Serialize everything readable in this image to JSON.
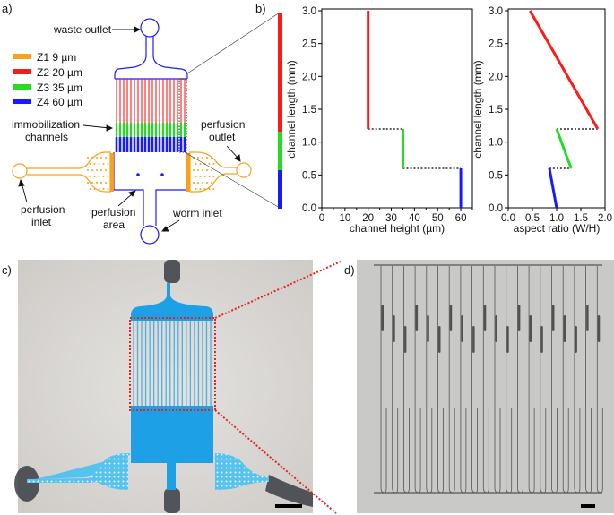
{
  "panels": {
    "a": "a)",
    "b": "b)",
    "c": "c)",
    "d": "d)"
  },
  "diagram": {
    "legend": [
      {
        "label": "Z1 9 µm",
        "color": "#f7a21b"
      },
      {
        "label": "Z2 20 µm",
        "color": "#ff1a1a"
      },
      {
        "label": "Z3 35 µm",
        "color": "#22dd22"
      },
      {
        "label": "Z4 60 µm",
        "color": "#1a1aff"
      }
    ],
    "labels": {
      "waste_outlet": "waste outlet",
      "immobilization_1": "immobilization",
      "immobilization_2": "channels",
      "perfusion_outlet_1": "perfusion",
      "perfusion_outlet_2": "outlet",
      "perfusion_inlet_1": "perfusion",
      "perfusion_inlet_2": "inlet",
      "perfusion_area_1": "perfusion",
      "perfusion_area_2": "area",
      "worm_inlet": "worm inlet"
    },
    "channel_count": 20
  },
  "chart_data": [
    {
      "type": "line",
      "xlabel": "channel height (µm)",
      "ylabel": "channel length (mm)",
      "xlim": [
        0,
        65
      ],
      "ylim": [
        0,
        3.0
      ],
      "xticks": [
        "0",
        "10",
        "20",
        "30",
        "40",
        "50",
        "60"
      ],
      "yticks": [
        "0.0",
        "0.5",
        "1.0",
        "1.5",
        "2.0",
        "2.5",
        "3.0"
      ],
      "grid": false,
      "series": [
        {
          "color": "#ff1a1a",
          "points": [
            [
              20,
              1.2
            ],
            [
              20,
              3.0
            ]
          ]
        },
        {
          "color": "#22dd22",
          "points": [
            [
              35,
              0.6
            ],
            [
              35,
              1.2
            ]
          ]
        },
        {
          "color": "#1a1aff",
          "points": [
            [
              60,
              0.0
            ],
            [
              60,
              0.6
            ]
          ]
        }
      ],
      "connectors": [
        [
          [
            20,
            1.2
          ],
          [
            35,
            1.2
          ]
        ],
        [
          [
            35,
            0.6
          ],
          [
            60,
            0.6
          ]
        ]
      ]
    },
    {
      "type": "line",
      "xlabel": "aspect ratio (W/H)",
      "ylabel": "channel length (mm)",
      "xlim": [
        0,
        2.0
      ],
      "ylim": [
        0,
        3.0
      ],
      "xticks": [
        "0.0",
        "0.5",
        "1.0",
        "1.5",
        "2.0"
      ],
      "yticks": [
        "0.0",
        "0.5",
        "1.0",
        "1.5",
        "2.0",
        "2.5",
        "3.0"
      ],
      "grid": false,
      "series": [
        {
          "color": "#ff1a1a",
          "points": [
            [
              1.85,
              1.2
            ],
            [
              0.45,
              3.0
            ]
          ]
        },
        {
          "color": "#22dd22",
          "points": [
            [
              1.3,
              0.6
            ],
            [
              1.0,
              1.2
            ]
          ]
        },
        {
          "color": "#1a1aff",
          "points": [
            [
              1.0,
              0.0
            ],
            [
              0.85,
              0.6
            ]
          ]
        }
      ],
      "connectors": [
        [
          [
            1.0,
            1.2
          ],
          [
            1.85,
            1.2
          ]
        ],
        [
          [
            0.85,
            0.6
          ],
          [
            1.3,
            0.6
          ]
        ]
      ]
    }
  ]
}
